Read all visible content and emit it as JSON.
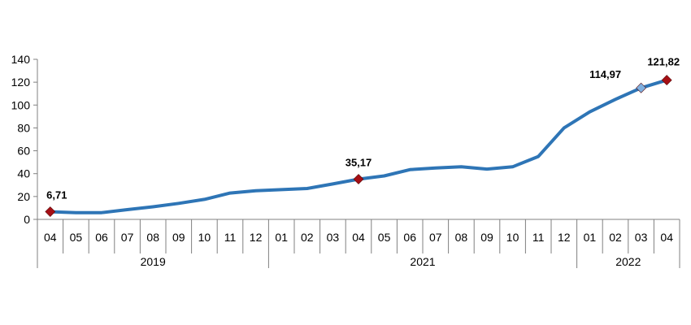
{
  "chart_data": {
    "type": "line",
    "title": "",
    "xlabel": "",
    "ylabel": "",
    "ylim": [
      0,
      140
    ],
    "y_ticks": [
      "0",
      "20",
      "40",
      "60",
      "80",
      "100",
      "120",
      "140"
    ],
    "grid": false,
    "legend": "none",
    "categories": [
      "04",
      "05",
      "06",
      "07",
      "08",
      "09",
      "10",
      "11",
      "12",
      "01",
      "02",
      "03",
      "04",
      "05",
      "06",
      "07",
      "08",
      "09",
      "10",
      "11",
      "12",
      "01",
      "02",
      "03",
      "04"
    ],
    "year_groups": [
      {
        "label": "2019",
        "count": 9
      },
      {
        "label": "2021",
        "count": 12
      },
      {
        "label": "2022",
        "count": 4
      }
    ],
    "series": [
      {
        "values": [
          6.71,
          5.9,
          5.9,
          8.5,
          11.0,
          14.0,
          17.5,
          23.0,
          25.0,
          26.0,
          27.0,
          31.0,
          35.17,
          38.0,
          43.5,
          45.0,
          46.0,
          44.0,
          46.0,
          55.0,
          80.0,
          94.0,
          105.0,
          114.97,
          121.82
        ],
        "color": "#2E75B6"
      }
    ],
    "highlighted_points": [
      {
        "index": 0,
        "label": "6,71",
        "color": "#A50F15"
      },
      {
        "index": 12,
        "label": "35,17",
        "color": "#A50F15"
      },
      {
        "index": 23,
        "label": "114,97",
        "color": "#7FB0E0"
      },
      {
        "index": 24,
        "label": "121,82",
        "color": "#A50F15"
      }
    ]
  }
}
